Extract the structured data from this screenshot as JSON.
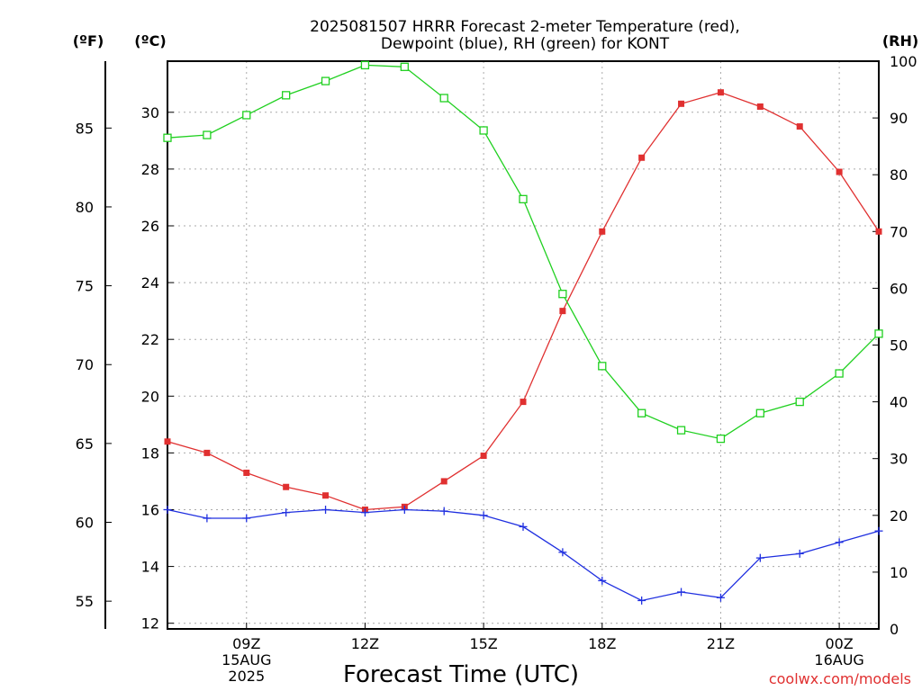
{
  "chart_data": {
    "type": "line",
    "title": [
      "2025081507 HRRR Forecast 2-meter Temperature (red),",
      "Dewpoint (blue), RH (green) for KONT"
    ],
    "xlabel": "Forecast Time (UTC)",
    "credit": "coolwx.com/models",
    "colors": {
      "temperature": "#e03030",
      "dewpoint": "#2030e0",
      "rh": "#20d020",
      "grid": "#aaaaaa"
    },
    "grid": true,
    "x_hours": [
      7,
      8,
      9,
      10,
      11,
      12,
      13,
      14,
      15,
      16,
      17,
      18,
      19,
      20,
      21,
      22,
      23,
      24,
      25
    ],
    "xlim": [
      7,
      25
    ],
    "x_ticks": [
      {
        "hour": 9,
        "lines": [
          "09Z",
          "15AUG",
          "2025"
        ]
      },
      {
        "hour": 12,
        "lines": [
          "12Z"
        ]
      },
      {
        "hour": 15,
        "lines": [
          "15Z"
        ]
      },
      {
        "hour": 18,
        "lines": [
          "18Z"
        ]
      },
      {
        "hour": 21,
        "lines": [
          "21Z"
        ]
      },
      {
        "hour": 24,
        "lines": [
          "00Z",
          "16AUG"
        ]
      }
    ],
    "left_axis_c": {
      "unit": "(ºC)",
      "ylim": [
        11.8,
        31.8
      ],
      "ticks": [
        "12",
        "14",
        "16",
        "18",
        "20",
        "22",
        "24",
        "26",
        "28",
        "30"
      ]
    },
    "left_axis_f": {
      "unit": "(ºF)",
      "ticks": [
        "55",
        "60",
        "65",
        "70",
        "75",
        "80",
        "85"
      ]
    },
    "right_axis_rh": {
      "unit": "(RH)",
      "ylim": [
        0,
        100
      ],
      "ticks": [
        "0",
        "10",
        "20",
        "30",
        "40",
        "50",
        "60",
        "70",
        "80",
        "90",
        "100"
      ]
    },
    "series": [
      {
        "key": "temperature",
        "axis": "C",
        "marker": "filled-square",
        "values": [
          18.4,
          18.0,
          17.3,
          16.8,
          16.5,
          16.0,
          16.1,
          17.0,
          17.9,
          19.8,
          23.0,
          25.8,
          28.4,
          30.3,
          30.7,
          30.2,
          29.5,
          27.9,
          25.8
        ]
      },
      {
        "key": "dewpoint",
        "axis": "C",
        "marker": "plus",
        "values": [
          16.0,
          15.7,
          15.7,
          15.9,
          16.0,
          15.9,
          16.0,
          15.95,
          15.8,
          15.4,
          14.5,
          13.5,
          12.8,
          13.1,
          12.9,
          14.3,
          14.45,
          14.85,
          15.25
        ]
      },
      {
        "key": "rh",
        "axis": "RH",
        "marker": "open-square",
        "values": [
          86.5,
          87.0,
          90.5,
          94.0,
          96.5,
          99.3,
          99.0,
          93.5,
          87.8,
          75.7,
          59.0,
          46.3,
          38.0,
          35.0,
          33.5,
          38.0,
          40.0,
          45.0,
          52.0
        ]
      }
    ]
  }
}
